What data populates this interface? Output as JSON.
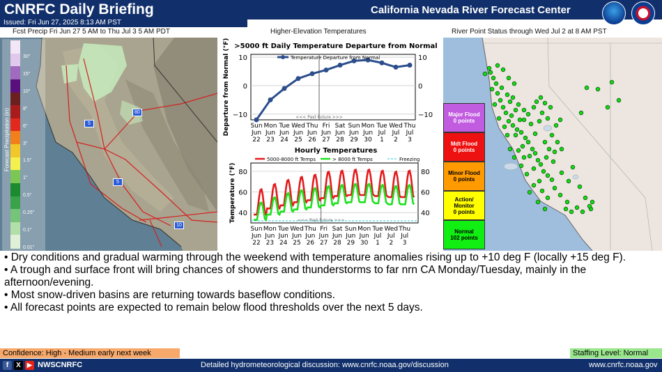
{
  "header": {
    "title": "CNRFC Daily Briefing",
    "org": "California Nevada River Forecast Center",
    "issued": "Issued: Fri Jun 27, 2025 8:13 AM PST"
  },
  "colors": {
    "header_bg": "#11306b",
    "confidence_bg": "#f7a96b",
    "staffing_bg": "#99e68c"
  },
  "panels": {
    "left_title": "Fcst Precip Fri Jun 27 5 AM to Thu Jul 3 5 AM PDT",
    "mid_title": "Higher-Elevation Temperatures",
    "right_title": "River Point Status through Wed Jul 2 at 8 AM PST"
  },
  "precip_legend": {
    "axis_label": "Forecast Precipitation (in)",
    "ticks": [
      "30\"",
      "15\"",
      "10\"",
      "8\"",
      "6\"",
      "3\"",
      "1.5\"",
      "1\"",
      "0.5\"",
      "0.25\"",
      "0.1\"",
      "0.01\""
    ],
    "colors": [
      "#f3e6f7",
      "#e3c8ee",
      "#a06bbf",
      "#5b0f7d",
      "#6b1f1f",
      "#a81c1c",
      "#e3281e",
      "#f07f1c",
      "#f2c72a",
      "#f4f04f",
      "#7cc656",
      "#1c8a2e",
      "#3aa34a",
      "#75c47a",
      "#b2dfa9",
      "#dff0d6"
    ]
  },
  "map_labels": {
    "hwy5a": "5",
    "hwy80": "80",
    "hwy5b": "5",
    "hwy10": "10"
  },
  "status_legend": [
    {
      "label": "Major Flood",
      "count": "0 points",
      "color": "#c15be0"
    },
    {
      "label": "Mdt Flood",
      "count": "0 points",
      "color": "#ee1111"
    },
    {
      "label": "Minor Flood",
      "count": "0 points",
      "color": "#ff9a00"
    },
    {
      "label": "Action/ Monitor",
      "count": "0 points",
      "color": "#ffff00"
    },
    {
      "label": "Normal",
      "count": "102 points",
      "color": "#11ee11"
    }
  ],
  "chart_data": [
    {
      "type": "line",
      "title": ">5000 ft Daily Temperature Departure from Normal",
      "ylabel": "Departure from Normal (°F)",
      "legend": [
        "Temperature Departure from Normal"
      ],
      "categories": [
        "Sun Jun 22",
        "Mon Jun 23",
        "Tue Jun 24",
        "Wed Jun 25",
        "Thu Jun 26",
        "Fri Jun 27",
        "Sat Jun 28",
        "Sun Jun 29",
        "Mon Jun 30",
        "Tue Jul 1",
        "Wed Jul 2",
        "Thu Jul 3"
      ],
      "x_day": [
        "Sun",
        "Mon",
        "Tue",
        "Wed",
        "Thu",
        "Fri",
        "Sat",
        "Sun",
        "Mon",
        "Tue",
        "Wed",
        "Thu"
      ],
      "x_mon": [
        "Jun",
        "Jun",
        "Jun",
        "Jun",
        "Jun",
        "Jun",
        "Jun",
        "Jun",
        "Jun",
        "Jul",
        "Jul",
        "Jul"
      ],
      "x_num": [
        "22",
        "23",
        "24",
        "25",
        "26",
        "27",
        "28",
        "29",
        "30",
        "1",
        "2",
        "3"
      ],
      "series": [
        {
          "name": "Temperature Departure from Normal",
          "values": [
            -12,
            -5,
            -1,
            2.5,
            4.2,
            5.5,
            7.2,
            8.7,
            9,
            8,
            6.5,
            7.2
          ],
          "color": "#2b4d8c"
        }
      ],
      "ylim": [
        -12,
        11
      ],
      "yticks": [
        "10",
        "0",
        "−10"
      ],
      "divider_label": "<<< Past  Future >>>"
    },
    {
      "type": "line",
      "title": "Hourly Temperatures",
      "ylabel": "Temperature (°F)",
      "legend": [
        "5000-8000 ft Temps",
        "> 8000 ft Temps",
        "Freezing"
      ],
      "categories": [
        "Sun Jun 22",
        "Mon Jun 23",
        "Tue Jun 24",
        "Wed Jun 25",
        "Thu Jun 26",
        "Fri Jun 27",
        "Sat Jun 28",
        "Sun Jun 29",
        "Mon Jun 30",
        "Tue Jul 1",
        "Wed Jul 2",
        "Thu Jul 3"
      ],
      "x_day": [
        "Sun",
        "Mon",
        "Tue",
        "Wed",
        "Thu",
        "Fri",
        "Sat",
        "Sun",
        "Mon",
        "Tue",
        "Wed",
        "Thu"
      ],
      "x_mon": [
        "Jun",
        "Jun",
        "Jun",
        "Jun",
        "Jun",
        "Jun",
        "Jun",
        "Jun",
        "Jun",
        "Jul",
        "Jul",
        "Jul"
      ],
      "x_num": [
        "22",
        "23",
        "24",
        "25",
        "26",
        "27",
        "28",
        "29",
        "30",
        "1",
        "2",
        "3"
      ],
      "series": [
        {
          "name": "5000-8000 ft Temps",
          "color": "#e31a1c",
          "daily_min": [
            38,
            44,
            47,
            50,
            52,
            54,
            56,
            57,
            57,
            56,
            55,
            55
          ],
          "daily_max": [
            63,
            68,
            72,
            75,
            77,
            80,
            81,
            82,
            82,
            81,
            80,
            81
          ]
        },
        {
          "name": "> 8000 ft Temps",
          "color": "#1fe01f",
          "daily_min": [
            33,
            38,
            41,
            43,
            45,
            47,
            49,
            50,
            50,
            49,
            48,
            48
          ],
          "daily_max": [
            50,
            55,
            59,
            62,
            64,
            66,
            67,
            68,
            68,
            67,
            66,
            67
          ]
        },
        {
          "name": "Freezing",
          "color": "#22c8d0",
          "value": 32
        }
      ],
      "ylim": [
        30,
        88
      ],
      "yticks": [
        "80",
        "60",
        "40"
      ],
      "divider_label": "<<< Past  Future >>>"
    }
  ],
  "bullets": [
    "• Dry conditions and gradual warming through the weekend with temperature anomalies rising up to +10 deg F (locally +15 deg F).",
    "• A trough and surface front will bring chances of showers and thunderstorms to far nrn CA Monday/Tuesday, mainly in the afternoon/evening.",
    "• Most snow-driven basins are returning towards baseflow conditions.",
    "• All forecast points are expected to remain below flood thresholds over the next 5 days."
  ],
  "footer": {
    "confidence": "Confidence: High - Medium early next week",
    "staffing": "Staffing Level: Normal",
    "social": "NWSCNRFC",
    "discussion": "Detailed hydrometeorological discussion: www.cnrfc.noaa.gov/discussion",
    "site": "www.cnrfc.noaa.gov",
    "icons": [
      "facebook-icon",
      "x-icon",
      "youtube-icon"
    ]
  }
}
